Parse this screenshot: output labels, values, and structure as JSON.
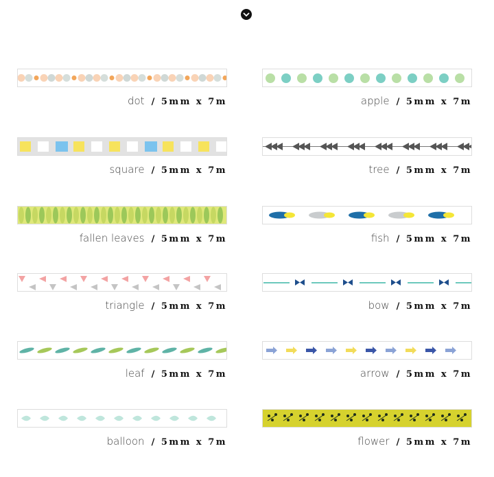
{
  "items": [
    {
      "name": "dot",
      "spec": "/ 5mm x 7m"
    },
    {
      "name": "apple",
      "spec": "/ 5mm x 7m"
    },
    {
      "name": "square",
      "spec": "/ 5mm x 7m"
    },
    {
      "name": "tree",
      "spec": "/ 5mm x 7m"
    },
    {
      "name": "fallen leaves",
      "spec": "/ 5mm x 7m"
    },
    {
      "name": "fish",
      "spec": "/ 5mm x 7m"
    },
    {
      "name": "triangle",
      "spec": "/ 5mm x 7m"
    },
    {
      "name": "bow",
      "spec": "/ 5mm x 7m"
    },
    {
      "name": "leaf",
      "spec": "/ 5mm x 7m"
    },
    {
      "name": "arrow",
      "spec": "/ 5mm x 7m"
    },
    {
      "name": "balloon",
      "spec": "/ 5mm x 7m"
    },
    {
      "name": "flower",
      "spec": "/ 5mm x 7m"
    }
  ]
}
